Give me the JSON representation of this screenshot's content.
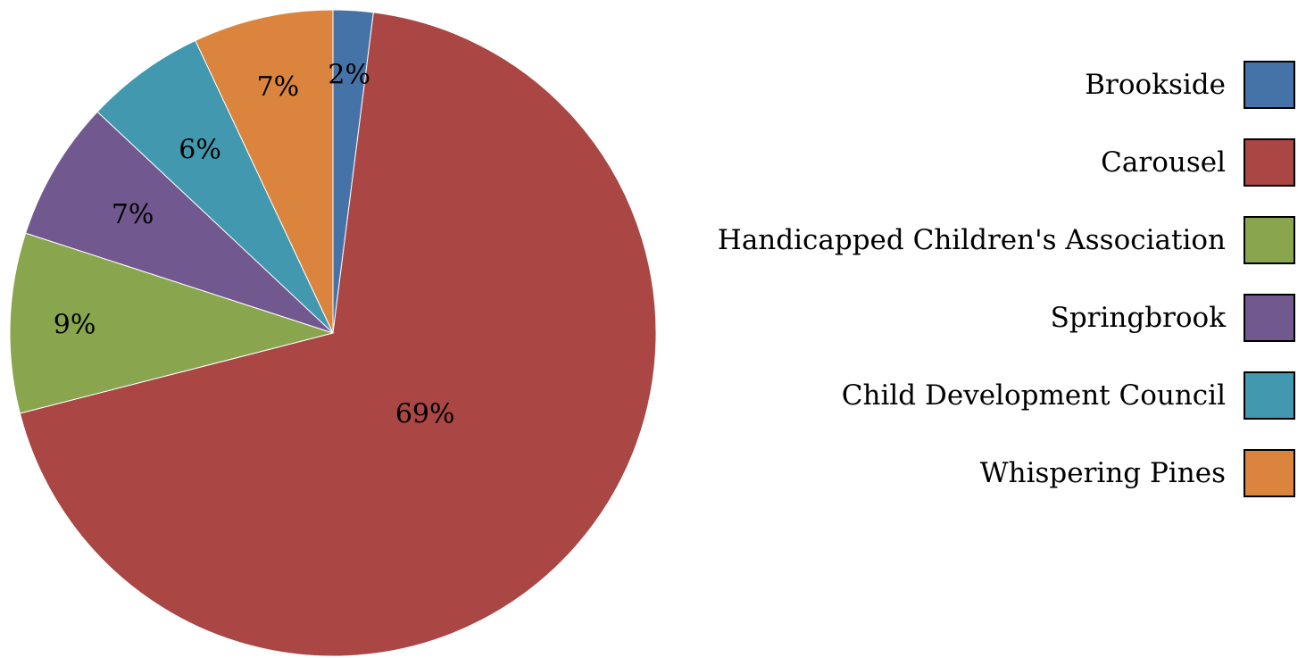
{
  "chart_data": {
    "type": "pie",
    "title": "",
    "legend_position": "right",
    "slices": [
      {
        "name": "Brookside",
        "value": 2,
        "label": "2%",
        "color": "#4572A7"
      },
      {
        "name": "Carousel",
        "value": 69,
        "label": "69%",
        "color": "#AA4643"
      },
      {
        "name": "Handicapped Children's Association",
        "value": 9,
        "label": "9%",
        "color": "#89A54E"
      },
      {
        "name": "Springbrook",
        "value": 7,
        "label": "7%",
        "color": "#71588F"
      },
      {
        "name": "Child Development Council",
        "value": 6,
        "label": "6%",
        "color": "#4198AF"
      },
      {
        "name": "Whispering Pines",
        "value": 7,
        "label": "7%",
        "color": "#DB843D"
      }
    ]
  }
}
